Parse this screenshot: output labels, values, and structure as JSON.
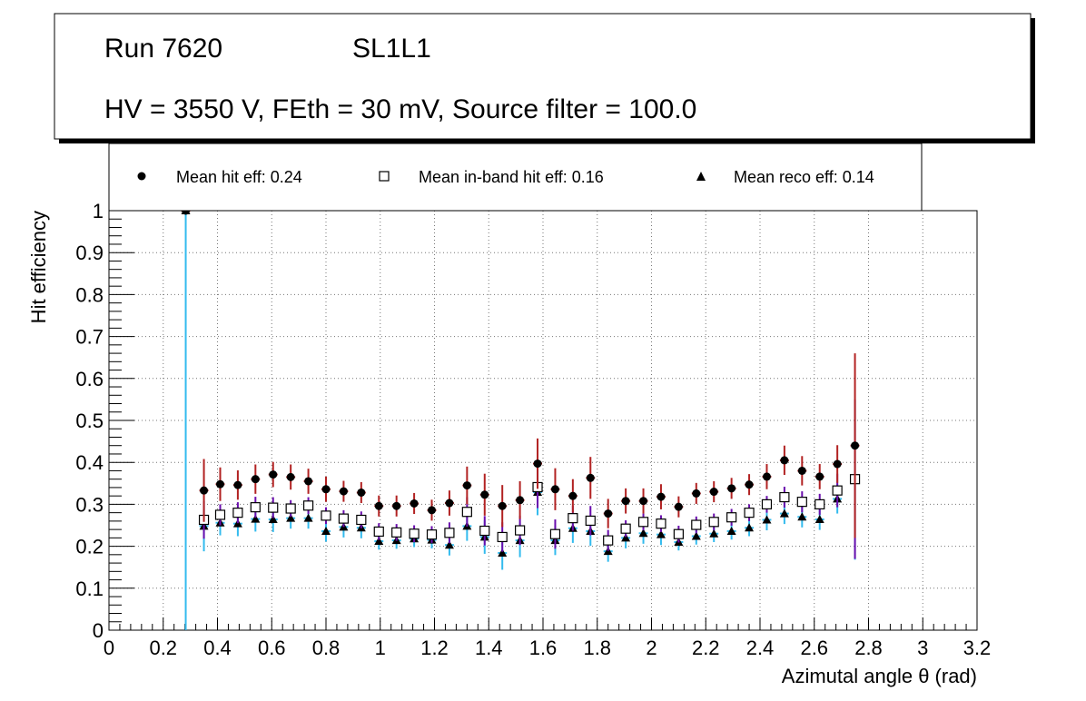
{
  "title_box": {
    "run": "Run 7620",
    "layer": "SL1L1",
    "settings": "HV = 3550 V, FEth = 30 mV, Source filter = 100.0"
  },
  "legend": [
    {
      "label": "Mean hit  eff: 0.24",
      "marker": "filled-circle"
    },
    {
      "label": "Mean in-band hit eff: 0.16",
      "marker": "open-square"
    },
    {
      "label": "Mean reco eff: 0.14",
      "marker": "filled-triangle"
    }
  ],
  "colors": {
    "hit_error": "#b22222",
    "inband_error": "#6a0dad",
    "reco_error": "#33bbee",
    "frame": "#000000",
    "grid": "#777777"
  },
  "chart_data": {
    "type": "scatter",
    "xlabel": "Azimutal angle θ (rad)",
    "ylabel": "Hit efficiency",
    "xlim": [
      0,
      3.2
    ],
    "ylim": [
      0,
      1
    ],
    "x_ticks": [
      "0",
      "0.2",
      "0.4",
      "0.6",
      "0.8",
      "1",
      "1.2",
      "1.4",
      "1.6",
      "1.8",
      "2",
      "2.2",
      "2.4",
      "2.6",
      "2.8",
      "3",
      "3.2"
    ],
    "y_ticks": [
      "0",
      "0.1",
      "0.2",
      "0.3",
      "0.4",
      "0.5",
      "0.6",
      "0.7",
      "0.8",
      "0.9",
      "1"
    ],
    "grid": true,
    "bin_half_width": 0.0167,
    "series": [
      {
        "name": "Mean hit  eff: 0.24",
        "marker": "filled-circle",
        "points": [
          {
            "x": 0.283,
            "y": 1.0,
            "err": 0.0
          },
          {
            "x": 0.35,
            "y": 0.333,
            "err": 0.075
          },
          {
            "x": 0.41,
            "y": 0.348,
            "err": 0.04
          },
          {
            "x": 0.475,
            "y": 0.346,
            "err": 0.035
          },
          {
            "x": 0.54,
            "y": 0.36,
            "err": 0.035
          },
          {
            "x": 0.605,
            "y": 0.371,
            "err": 0.03
          },
          {
            "x": 0.67,
            "y": 0.365,
            "err": 0.03
          },
          {
            "x": 0.735,
            "y": 0.355,
            "err": 0.03
          },
          {
            "x": 0.8,
            "y": 0.336,
            "err": 0.03
          },
          {
            "x": 0.865,
            "y": 0.331,
            "err": 0.025
          },
          {
            "x": 0.93,
            "y": 0.328,
            "err": 0.025
          },
          {
            "x": 0.995,
            "y": 0.296,
            "err": 0.025
          },
          {
            "x": 1.06,
            "y": 0.296,
            "err": 0.025
          },
          {
            "x": 1.125,
            "y": 0.302,
            "err": 0.025
          },
          {
            "x": 1.19,
            "y": 0.286,
            "err": 0.025
          },
          {
            "x": 1.255,
            "y": 0.303,
            "err": 0.03
          },
          {
            "x": 1.32,
            "y": 0.345,
            "err": 0.045
          },
          {
            "x": 1.385,
            "y": 0.323,
            "err": 0.05
          },
          {
            "x": 1.45,
            "y": 0.296,
            "err": 0.05
          },
          {
            "x": 1.515,
            "y": 0.31,
            "err": 0.045
          },
          {
            "x": 1.58,
            "y": 0.397,
            "err": 0.06
          },
          {
            "x": 1.645,
            "y": 0.336,
            "err": 0.05
          },
          {
            "x": 1.71,
            "y": 0.32,
            "err": 0.04
          },
          {
            "x": 1.775,
            "y": 0.363,
            "err": 0.05
          },
          {
            "x": 1.84,
            "y": 0.278,
            "err": 0.035
          },
          {
            "x": 1.905,
            "y": 0.308,
            "err": 0.03
          },
          {
            "x": 1.97,
            "y": 0.308,
            "err": 0.03
          },
          {
            "x": 2.035,
            "y": 0.318,
            "err": 0.03
          },
          {
            "x": 2.1,
            "y": 0.294,
            "err": 0.025
          },
          {
            "x": 2.165,
            "y": 0.326,
            "err": 0.025
          },
          {
            "x": 2.23,
            "y": 0.33,
            "err": 0.025
          },
          {
            "x": 2.295,
            "y": 0.338,
            "err": 0.025
          },
          {
            "x": 2.36,
            "y": 0.347,
            "err": 0.025
          },
          {
            "x": 2.425,
            "y": 0.366,
            "err": 0.03
          },
          {
            "x": 2.49,
            "y": 0.405,
            "err": 0.035
          },
          {
            "x": 2.555,
            "y": 0.38,
            "err": 0.035
          },
          {
            "x": 2.62,
            "y": 0.366,
            "err": 0.03
          },
          {
            "x": 2.685,
            "y": 0.396,
            "err": 0.045
          },
          {
            "x": 2.75,
            "y": 0.44,
            "err": 0.22
          }
        ]
      },
      {
        "name": "Mean in-band hit eff: 0.16",
        "marker": "open-square",
        "points": [
          {
            "x": 0.35,
            "y": 0.263,
            "err": 0.045
          },
          {
            "x": 0.41,
            "y": 0.275,
            "err": 0.025
          },
          {
            "x": 0.475,
            "y": 0.28,
            "err": 0.025
          },
          {
            "x": 0.54,
            "y": 0.293,
            "err": 0.025
          },
          {
            "x": 0.605,
            "y": 0.292,
            "err": 0.025
          },
          {
            "x": 0.67,
            "y": 0.29,
            "err": 0.02
          },
          {
            "x": 0.735,
            "y": 0.297,
            "err": 0.02
          },
          {
            "x": 0.8,
            "y": 0.273,
            "err": 0.02
          },
          {
            "x": 0.865,
            "y": 0.266,
            "err": 0.02
          },
          {
            "x": 0.93,
            "y": 0.263,
            "err": 0.02
          },
          {
            "x": 0.995,
            "y": 0.235,
            "err": 0.02
          },
          {
            "x": 1.06,
            "y": 0.233,
            "err": 0.02
          },
          {
            "x": 1.125,
            "y": 0.23,
            "err": 0.02
          },
          {
            "x": 1.19,
            "y": 0.228,
            "err": 0.02
          },
          {
            "x": 1.255,
            "y": 0.232,
            "err": 0.025
          },
          {
            "x": 1.32,
            "y": 0.282,
            "err": 0.035
          },
          {
            "x": 1.385,
            "y": 0.237,
            "err": 0.035
          },
          {
            "x": 1.45,
            "y": 0.222,
            "err": 0.035
          },
          {
            "x": 1.515,
            "y": 0.238,
            "err": 0.035
          },
          {
            "x": 1.58,
            "y": 0.341,
            "err": 0.05
          },
          {
            "x": 1.645,
            "y": 0.229,
            "err": 0.035
          },
          {
            "x": 1.71,
            "y": 0.267,
            "err": 0.03
          },
          {
            "x": 1.775,
            "y": 0.261,
            "err": 0.035
          },
          {
            "x": 1.84,
            "y": 0.214,
            "err": 0.025
          },
          {
            "x": 1.905,
            "y": 0.242,
            "err": 0.02
          },
          {
            "x": 1.97,
            "y": 0.258,
            "err": 0.02
          },
          {
            "x": 2.035,
            "y": 0.254,
            "err": 0.02
          },
          {
            "x": 2.1,
            "y": 0.229,
            "err": 0.02
          },
          {
            "x": 2.165,
            "y": 0.251,
            "err": 0.02
          },
          {
            "x": 2.23,
            "y": 0.258,
            "err": 0.02
          },
          {
            "x": 2.295,
            "y": 0.269,
            "err": 0.02
          },
          {
            "x": 2.36,
            "y": 0.28,
            "err": 0.02
          },
          {
            "x": 2.425,
            "y": 0.3,
            "err": 0.02
          },
          {
            "x": 2.49,
            "y": 0.317,
            "err": 0.025
          },
          {
            "x": 2.555,
            "y": 0.306,
            "err": 0.025
          },
          {
            "x": 2.62,
            "y": 0.3,
            "err": 0.025
          },
          {
            "x": 2.685,
            "y": 0.333,
            "err": 0.04
          },
          {
            "x": 2.75,
            "y": 0.36,
            "err": 0.19
          }
        ]
      },
      {
        "name": "Mean reco eff: 0.14",
        "marker": "filled-triangle",
        "points": [
          {
            "x": 0.283,
            "y": 1.0,
            "err": 1.0
          },
          {
            "x": 0.35,
            "y": 0.248,
            "err": 0.06
          },
          {
            "x": 0.41,
            "y": 0.256,
            "err": 0.03
          },
          {
            "x": 0.475,
            "y": 0.254,
            "err": 0.03
          },
          {
            "x": 0.54,
            "y": 0.265,
            "err": 0.03
          },
          {
            "x": 0.605,
            "y": 0.264,
            "err": 0.03
          },
          {
            "x": 0.67,
            "y": 0.267,
            "err": 0.025
          },
          {
            "x": 0.735,
            "y": 0.267,
            "err": 0.025
          },
          {
            "x": 0.8,
            "y": 0.236,
            "err": 0.025
          },
          {
            "x": 0.865,
            "y": 0.246,
            "err": 0.025
          },
          {
            "x": 0.93,
            "y": 0.244,
            "err": 0.025
          },
          {
            "x": 0.995,
            "y": 0.212,
            "err": 0.02
          },
          {
            "x": 1.06,
            "y": 0.214,
            "err": 0.02
          },
          {
            "x": 1.125,
            "y": 0.218,
            "err": 0.02
          },
          {
            "x": 1.19,
            "y": 0.215,
            "err": 0.02
          },
          {
            "x": 1.255,
            "y": 0.203,
            "err": 0.025
          },
          {
            "x": 1.32,
            "y": 0.248,
            "err": 0.035
          },
          {
            "x": 1.385,
            "y": 0.222,
            "err": 0.04
          },
          {
            "x": 1.45,
            "y": 0.184,
            "err": 0.04
          },
          {
            "x": 1.515,
            "y": 0.214,
            "err": 0.04
          },
          {
            "x": 1.58,
            "y": 0.329,
            "err": 0.055
          },
          {
            "x": 1.645,
            "y": 0.214,
            "err": 0.035
          },
          {
            "x": 1.71,
            "y": 0.243,
            "err": 0.035
          },
          {
            "x": 1.775,
            "y": 0.236,
            "err": 0.035
          },
          {
            "x": 1.84,
            "y": 0.188,
            "err": 0.025
          },
          {
            "x": 1.905,
            "y": 0.22,
            "err": 0.025
          },
          {
            "x": 1.97,
            "y": 0.231,
            "err": 0.025
          },
          {
            "x": 2.035,
            "y": 0.228,
            "err": 0.025
          },
          {
            "x": 2.1,
            "y": 0.21,
            "err": 0.02
          },
          {
            "x": 2.165,
            "y": 0.224,
            "err": 0.02
          },
          {
            "x": 2.23,
            "y": 0.23,
            "err": 0.02
          },
          {
            "x": 2.295,
            "y": 0.236,
            "err": 0.02
          },
          {
            "x": 2.36,
            "y": 0.244,
            "err": 0.02
          },
          {
            "x": 2.425,
            "y": 0.263,
            "err": 0.025
          },
          {
            "x": 2.49,
            "y": 0.278,
            "err": 0.025
          },
          {
            "x": 2.555,
            "y": 0.27,
            "err": 0.025
          },
          {
            "x": 2.62,
            "y": 0.264,
            "err": 0.025
          },
          {
            "x": 2.685,
            "y": 0.313,
            "err": 0.035
          },
          {
            "x": 2.75,
            "y": 0.358,
            "err": 0.19
          }
        ]
      }
    ]
  }
}
